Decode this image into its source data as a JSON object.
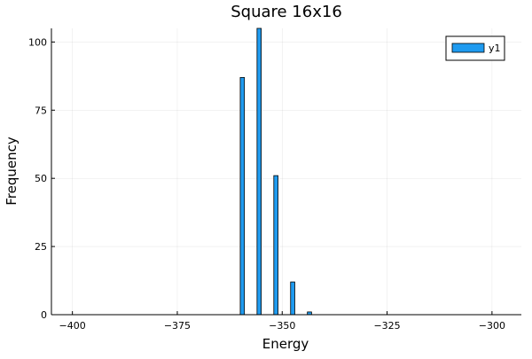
{
  "chart_data": {
    "type": "bar",
    "title": "Square 16x16",
    "xlabel": "Energy",
    "ylabel": "Frequency",
    "xlim": [
      -405,
      -293
    ],
    "ylim": [
      0,
      105
    ],
    "x_ticks": [
      -400,
      -375,
      -350,
      -325,
      -300
    ],
    "y_ticks": [
      0,
      25,
      50,
      75,
      100
    ],
    "grid": true,
    "legend_position": "top-right",
    "series": [
      {
        "name": "y1",
        "color": "#1f9bf0",
        "bin_width": 1,
        "bins": [
          {
            "x0": -360,
            "x1": -359,
            "value": 87
          },
          {
            "x0": -356,
            "x1": -355,
            "value": 105
          },
          {
            "x0": -352,
            "x1": -351,
            "value": 51
          },
          {
            "x0": -348,
            "x1": -347,
            "value": 12
          },
          {
            "x0": -344,
            "x1": -343,
            "value": 1
          }
        ]
      }
    ]
  }
}
